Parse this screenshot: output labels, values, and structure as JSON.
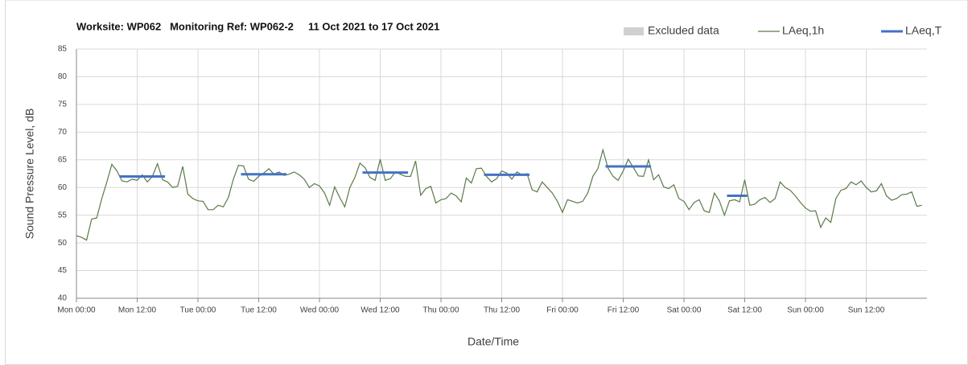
{
  "chart_data": {
    "type": "line",
    "title": "Worksite: WP062   Monitoring Ref: WP062-2     11 Oct 2021 to 17 Oct 2021",
    "x_label": "Date/Time",
    "y_label": "Sound Pressure Level, dB",
    "xlim": [
      0,
      168
    ],
    "ylim": [
      40,
      85
    ],
    "yticks": [
      40,
      45,
      50,
      55,
      60,
      65,
      70,
      75,
      80,
      85
    ],
    "xticks": [
      {
        "value": 0,
        "label": "Mon 00:00"
      },
      {
        "value": 12,
        "label": "Mon 12:00"
      },
      {
        "value": 24,
        "label": "Tue 00:00"
      },
      {
        "value": 36,
        "label": "Tue 12:00"
      },
      {
        "value": 48,
        "label": "Wed 00:00"
      },
      {
        "value": 60,
        "label": "Wed 12:00"
      },
      {
        "value": 72,
        "label": "Thu 00:00"
      },
      {
        "value": 84,
        "label": "Thu 12:00"
      },
      {
        "value": 96,
        "label": "Fri 00:00"
      },
      {
        "value": 108,
        "label": "Fri 12:00"
      },
      {
        "value": 120,
        "label": "Sat 00:00"
      },
      {
        "value": 132,
        "label": "Sat 12:00"
      },
      {
        "value": 144,
        "label": "Sun 00:00"
      },
      {
        "value": 156,
        "label": "Sun 12:00"
      }
    ],
    "grid": true,
    "legend_position": "top-right",
    "series": [
      {
        "name": "Excluded data",
        "color": "#d0d0d0",
        "values": []
      },
      {
        "name": "LAeq,1h",
        "color": "#5a7a4a",
        "x": [
          0,
          1,
          2,
          3,
          4,
          5,
          6,
          7,
          8,
          9,
          10,
          11,
          12,
          13,
          14,
          15,
          16,
          17,
          18,
          19,
          20,
          21,
          22,
          23,
          24,
          25,
          26,
          27,
          28,
          29,
          30,
          31,
          32,
          33,
          34,
          35,
          36,
          37,
          38,
          39,
          40,
          41,
          42,
          43,
          44,
          45,
          46,
          47,
          48,
          49,
          50,
          51,
          52,
          53,
          54,
          55,
          56,
          57,
          58,
          59,
          60,
          61,
          62,
          63,
          64,
          65,
          66,
          67,
          68,
          69,
          70,
          71,
          72,
          73,
          74,
          75,
          76,
          77,
          78,
          79,
          80,
          81,
          82,
          83,
          84,
          85,
          86,
          87,
          88,
          89,
          90,
          91,
          92,
          93,
          94,
          95,
          96,
          97,
          98,
          99,
          100,
          101,
          102,
          103,
          104,
          105,
          106,
          107,
          108,
          109,
          110,
          111,
          112,
          113,
          114,
          115,
          116,
          117,
          118,
          119,
          120,
          121,
          122,
          123,
          124,
          125,
          126,
          127,
          128,
          129,
          130,
          131,
          132,
          133,
          134,
          135,
          136,
          137,
          138,
          139,
          140,
          141,
          142,
          143,
          144,
          145,
          146,
          147,
          148,
          149,
          150,
          151,
          152,
          153,
          154,
          155,
          156,
          157,
          158,
          159,
          160,
          161,
          162,
          163,
          164,
          165,
          166,
          167
        ],
        "values": [
          51.3,
          51,
          50.5,
          54.3,
          54.5,
          58,
          61,
          64.2,
          63,
          61.2,
          61,
          61.5,
          61.3,
          62.3,
          61,
          62,
          64.3,
          61.4,
          61,
          60,
          60.2,
          63.8,
          58.8,
          58,
          57.6,
          57.5,
          56,
          56,
          56.8,
          56.5,
          58.2,
          61.5,
          64,
          63.9,
          61.5,
          61.1,
          62,
          62.6,
          63.4,
          62.4,
          62.8,
          62.2,
          62.4,
          62.8,
          62.3,
          61.5,
          60,
          60.7,
          60.3,
          59,
          56.8,
          60.1,
          58.2,
          56.5,
          60,
          61.8,
          64.4,
          63.6,
          61.8,
          61.3,
          65.1,
          61.3,
          61.6,
          62.8,
          62.4,
          62,
          62,
          64.8,
          58.6,
          59.8,
          60.2,
          57.2,
          57.8,
          58,
          59,
          58.5,
          57.4,
          61.7,
          60.8,
          63.4,
          63.5,
          62,
          61,
          61.6,
          63,
          62.6,
          61.5,
          62.8,
          62.3,
          62.5,
          59.6,
          59.2,
          61,
          60,
          59,
          57.5,
          55.5,
          57.8,
          57.5,
          57.2,
          57.5,
          59,
          62,
          63.4,
          66.8,
          63.5,
          62,
          61.3,
          63,
          65.1,
          63.6,
          62.1,
          62,
          65,
          61.4,
          62.3,
          60.1,
          59.8,
          60.5,
          58,
          57.5,
          56,
          57.3,
          57.8,
          55.8,
          55.5,
          59,
          57.6,
          55,
          57.6,
          57.8,
          57.4,
          61.4,
          56.8,
          57,
          57.8,
          58.2,
          57.3,
          58,
          61,
          60,
          59.5,
          58.5,
          57.3,
          56.3,
          55.7,
          55.8,
          52.8,
          54.5,
          53.7,
          58,
          59.5,
          59.8,
          61,
          60.5,
          61.2,
          60,
          59.2,
          59.4,
          60.7,
          58.5,
          57.7,
          58,
          58.7,
          58.8,
          59.2,
          56.6,
          56.8
        ]
      },
      {
        "name": "LAeq,T",
        "color": "#4472c4",
        "x_start": [
          8.5,
          32.5,
          56.5,
          80.5,
          104.5,
          128.5
        ],
        "x_end": [
          17.5,
          41.5,
          65.5,
          89.5,
          113.5,
          132.5
        ],
        "values": [
          62.0,
          62.4,
          62.7,
          62.3,
          63.8,
          58.5
        ]
      }
    ]
  }
}
